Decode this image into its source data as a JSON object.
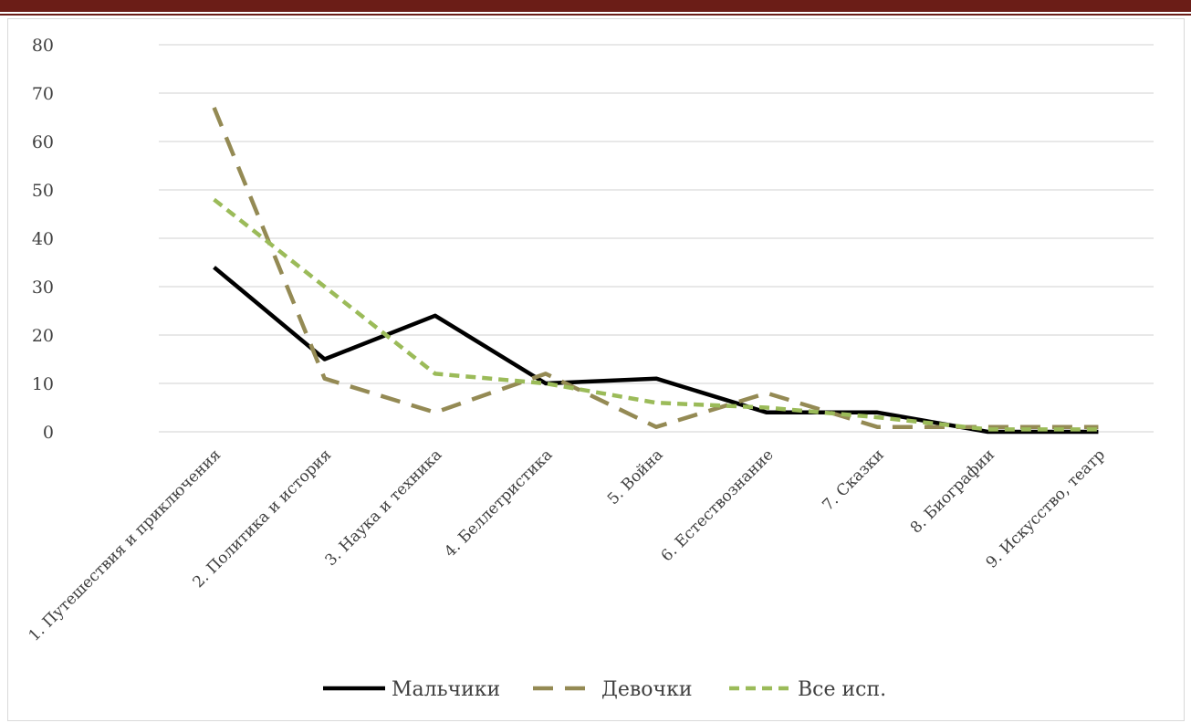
{
  "chart_data": {
    "type": "line",
    "title": "",
    "xlabel": "",
    "ylabel": "",
    "ylim": [
      0,
      80
    ],
    "yticks": [
      0,
      10,
      20,
      30,
      40,
      50,
      60,
      70,
      80
    ],
    "grid": true,
    "legend_position": "bottom",
    "categories": [
      "1. Путешествия и приключения",
      "2. Политика и история",
      "3. Наука и техника",
      "4. Беллетристика",
      "5. Война",
      "6. Естествознание",
      "7. Сказки",
      "8. Биографии",
      "9. Искусство, театр"
    ],
    "series": [
      {
        "name": "Мальчики",
        "values": [
          34,
          15,
          24,
          10,
          11,
          4,
          4,
          0,
          0
        ],
        "color": "#000000",
        "dash": "solid"
      },
      {
        "name": "Девочки",
        "values": [
          67,
          11,
          4,
          12,
          1,
          8,
          1,
          1,
          1
        ],
        "color": "#948a54",
        "dash": "long-dash"
      },
      {
        "name": "Все исп.",
        "values": [
          48,
          30,
          12,
          10,
          6,
          5,
          3,
          0.5,
          0.5
        ],
        "color": "#9bbb59",
        "dash": "short-dash"
      }
    ]
  }
}
